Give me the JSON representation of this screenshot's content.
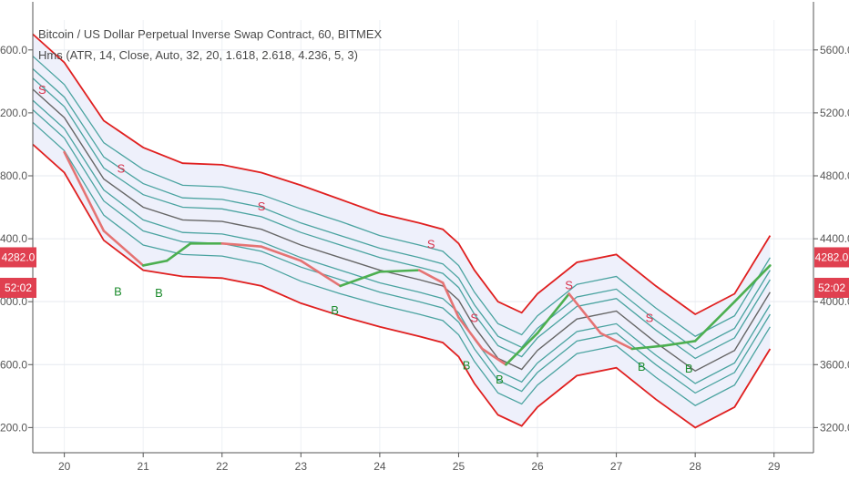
{
  "chart_data": {
    "type": "line",
    "title": "Bitcoin / US Dollar Perpetual Inverse Swap Contract, 60, BITMEX",
    "indicator": "Hms (ATR, 14, Close, Auto, 32, 20, 1.618, 2.618, 4.236, 5, 3)",
    "x_ticks": [
      "20",
      "21",
      "22",
      "23",
      "24",
      "25",
      "26",
      "27",
      "28",
      "29"
    ],
    "x_tick_values": [
      20,
      21,
      22,
      23,
      24,
      25,
      26,
      27,
      28,
      29
    ],
    "y_ticks": [
      "3200.0",
      "3600.0",
      "4000.0",
      "4400.0",
      "4800.0",
      "5200.0",
      "5600.0"
    ],
    "y_tick_values": [
      3200,
      3600,
      4000,
      4400,
      4800,
      5200,
      5600
    ],
    "xlim": [
      19.6,
      29.5
    ],
    "ylim": [
      3040,
      5790
    ],
    "grid": true,
    "colors": {
      "outer_band": "#e02020",
      "inner_band": "#4aa3a0",
      "middle_line": "#666666",
      "trend_up": "#4caf50",
      "trend_down": "#e57373",
      "fill": "#eef0fb",
      "buy": "#1e8c2e",
      "sell": "#d9304a",
      "price_tag": "#e04050"
    },
    "x": [
      19.6,
      20.0,
      20.5,
      21.0,
      21.5,
      22.0,
      22.5,
      23.0,
      23.5,
      24.0,
      24.5,
      24.8,
      25.0,
      25.2,
      25.5,
      25.8,
      26.0,
      26.5,
      27.0,
      27.5,
      28.0,
      28.5,
      28.95
    ],
    "series": [
      {
        "role": "outer-upper",
        "values": [
          5700,
          5520,
          5150,
          4980,
          4880,
          4870,
          4820,
          4740,
          4650,
          4560,
          4500,
          4460,
          4370,
          4200,
          4000,
          3930,
          4050,
          4250,
          4300,
          4100,
          3920,
          4050,
          4420
        ]
      },
      {
        "role": "band-upper-3",
        "values": [
          5560,
          5380,
          5010,
          4840,
          4740,
          4730,
          4680,
          4590,
          4510,
          4420,
          4360,
          4320,
          4230,
          4060,
          3860,
          3790,
          3910,
          4110,
          4160,
          3960,
          3780,
          3910,
          4280
        ]
      },
      {
        "role": "band-upper-2",
        "values": [
          5480,
          5300,
          4920,
          4750,
          4660,
          4650,
          4600,
          4500,
          4420,
          4340,
          4280,
          4240,
          4150,
          3980,
          3780,
          3710,
          3830,
          4030,
          4080,
          3880,
          3700,
          3830,
          4200
        ]
      },
      {
        "role": "band-upper-1",
        "values": [
          5420,
          5240,
          4850,
          4680,
          4600,
          4590,
          4540,
          4440,
          4360,
          4280,
          4220,
          4180,
          4090,
          3920,
          3720,
          3650,
          3770,
          3970,
          4020,
          3820,
          3640,
          3770,
          4140
        ]
      },
      {
        "role": "middle",
        "values": [
          5350,
          5170,
          4780,
          4600,
          4520,
          4510,
          4460,
          4360,
          4280,
          4200,
          4140,
          4100,
          4010,
          3840,
          3640,
          3570,
          3690,
          3890,
          3940,
          3740,
          3560,
          3690,
          4060
        ]
      },
      {
        "role": "band-lower-1",
        "values": [
          5280,
          5100,
          4710,
          4520,
          4440,
          4430,
          4380,
          4280,
          4200,
          4120,
          4060,
          4020,
          3930,
          3760,
          3560,
          3490,
          3610,
          3810,
          3860,
          3660,
          3480,
          3610,
          3980
        ]
      },
      {
        "role": "band-lower-2",
        "values": [
          5220,
          5040,
          4640,
          4450,
          4380,
          4370,
          4320,
          4220,
          4140,
          4060,
          4000,
          3960,
          3870,
          3700,
          3500,
          3430,
          3550,
          3750,
          3800,
          3600,
          3420,
          3550,
          3920
        ]
      },
      {
        "role": "band-lower-3",
        "values": [
          5140,
          4960,
          4550,
          4360,
          4300,
          4290,
          4240,
          4130,
          4050,
          3980,
          3920,
          3880,
          3790,
          3620,
          3420,
          3350,
          3470,
          3670,
          3720,
          3520,
          3340,
          3470,
          3840
        ]
      },
      {
        "role": "outer-lower",
        "values": [
          5000,
          4820,
          4390,
          4200,
          4160,
          4150,
          4100,
          3990,
          3910,
          3840,
          3780,
          3740,
          3650,
          3480,
          3280,
          3210,
          3330,
          3530,
          3580,
          3380,
          3200,
          3330,
          3700
        ]
      }
    ],
    "trend": {
      "x": [
        20.0,
        20.5,
        21.0,
        21.3,
        21.6,
        22.0,
        22.5,
        23.0,
        23.5,
        24.0,
        24.5,
        24.8,
        25.0,
        25.3,
        25.6,
        26.0,
        26.4,
        26.8,
        27.2,
        27.6,
        28.0,
        28.5,
        28.95
      ],
      "y": [
        4950,
        4450,
        4230,
        4260,
        4370,
        4370,
        4350,
        4260,
        4100,
        4190,
        4200,
        4120,
        3900,
        3700,
        3600,
        3800,
        4050,
        3800,
        3700,
        3720,
        3750,
        4000,
        4230
      ],
      "dir": [
        "down",
        "down",
        "up",
        "up",
        "up",
        "down",
        "down",
        "down",
        "up",
        "up",
        "down",
        "down",
        "down",
        "down",
        "up",
        "up",
        "down",
        "down",
        "up",
        "up",
        "up",
        "up",
        "up"
      ]
    },
    "signals": [
      {
        "label": "S",
        "x": 19.72,
        "y": 5320,
        "type": "sell"
      },
      {
        "label": "S",
        "x": 20.72,
        "y": 4820,
        "type": "sell"
      },
      {
        "label": "S",
        "x": 22.5,
        "y": 4580,
        "type": "sell"
      },
      {
        "label": "S",
        "x": 24.65,
        "y": 4340,
        "type": "sell"
      },
      {
        "label": "S",
        "x": 25.2,
        "y": 3870,
        "type": "sell"
      },
      {
        "label": "S",
        "x": 26.4,
        "y": 4080,
        "type": "sell"
      },
      {
        "label": "S",
        "x": 27.42,
        "y": 3870,
        "type": "sell"
      },
      {
        "label": "B",
        "x": 20.68,
        "y": 4040,
        "type": "buy"
      },
      {
        "label": "B",
        "x": 21.2,
        "y": 4030,
        "type": "buy"
      },
      {
        "label": "B",
        "x": 23.43,
        "y": 3920,
        "type": "buy"
      },
      {
        "label": "B",
        "x": 25.1,
        "y": 3570,
        "type": "buy"
      },
      {
        "label": "B",
        "x": 25.52,
        "y": 3480,
        "type": "buy"
      },
      {
        "label": "B",
        "x": 27.32,
        "y": 3560,
        "type": "buy"
      },
      {
        "label": "B",
        "x": 27.92,
        "y": 3550,
        "type": "buy"
      }
    ],
    "price_tags": [
      {
        "text": "4282.0",
        "value": 4282
      },
      {
        "text": "52:02",
        "value": 4088
      }
    ]
  }
}
